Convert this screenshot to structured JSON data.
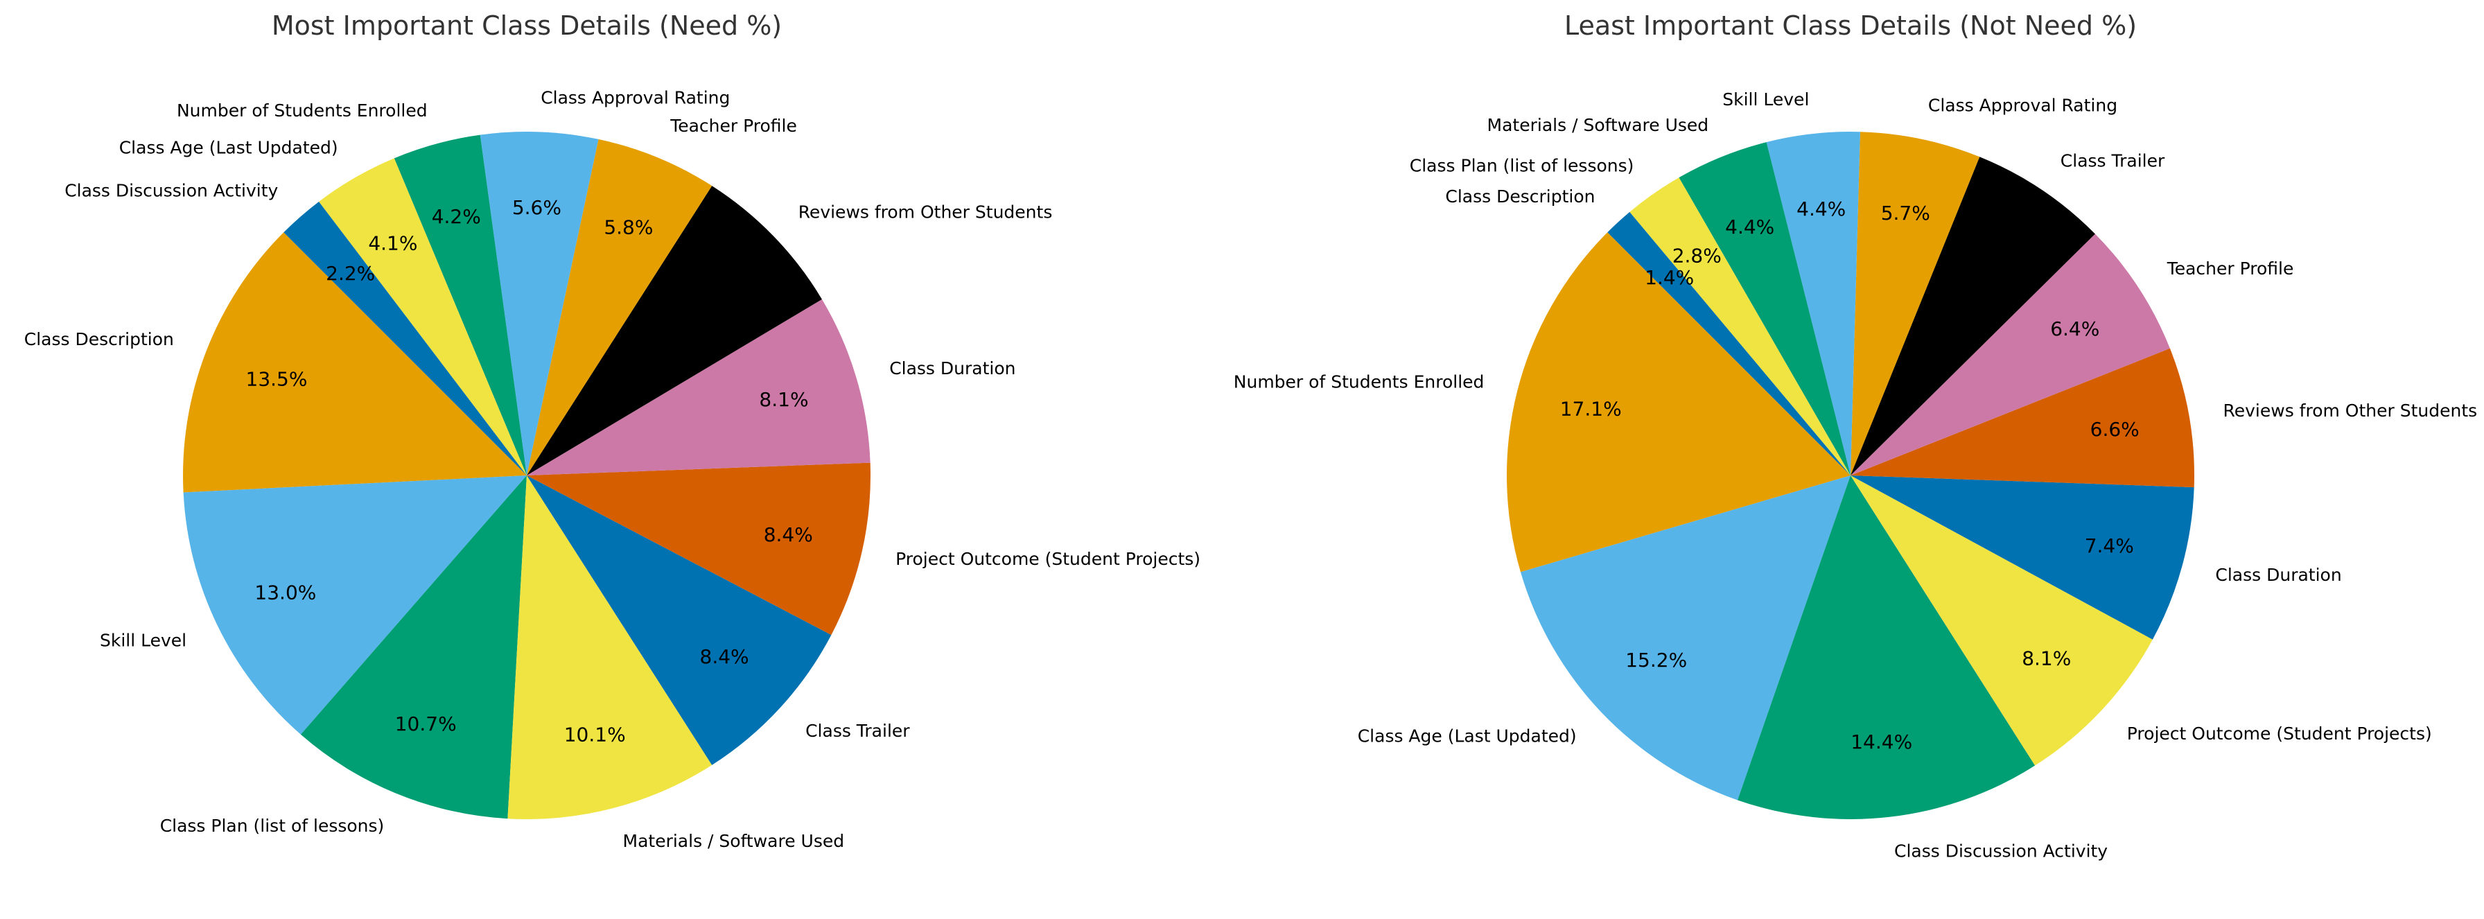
{
  "chart_data": [
    {
      "type": "pie",
      "title": "Most Important Class Details (Need %)",
      "start_angle_deg": 135,
      "direction": "counterclockwise",
      "categories": [
        "Class Description",
        "Skill Level",
        "Class Plan (list of lessons)",
        "Materials / Software Used",
        "Class Trailer",
        "Project Outcome (Student Projects)",
        "Class Duration",
        "Reviews from Other Students",
        "Teacher Profile",
        "Class Approval Rating",
        "Number of Students Enrolled",
        "Class Age (Last Updated)",
        "Class Discussion Activity"
      ],
      "values": [
        13.5,
        13.0,
        10.7,
        10.1,
        8.4,
        8.4,
        8.1,
        7.5,
        5.8,
        5.6,
        4.2,
        4.1,
        2.2
      ],
      "value_labels": [
        "13.5%",
        "13.0%",
        "10.7%",
        "10.1%",
        "8.4%",
        "8.4%",
        "8.1%",
        "",
        "5.8%",
        "5.6%",
        "4.2%",
        "4.1%",
        "2.2%"
      ],
      "colors": [
        "#E69F00",
        "#56B4E9",
        "#009E73",
        "#F0E442",
        "#0072B2",
        "#D55E00",
        "#CC79A7",
        "#000000",
        "#E69F00",
        "#56B4E9",
        "#009E73",
        "#F0E442",
        "#0072B2"
      ]
    },
    {
      "type": "pie",
      "title": "Least Important Class Details (Not Need %)",
      "start_angle_deg": 135,
      "direction": "counterclockwise",
      "categories": [
        "Number of Students Enrolled",
        "Class Age (Last Updated)",
        "Class Discussion Activity",
        "Project Outcome (Student Projects)",
        "Class Duration",
        "Reviews from Other Students",
        "Teacher Profile",
        "Class Trailer",
        "Class Approval Rating",
        "Skill Level",
        "Materials / Software Used",
        "Class Plan (list of lessons)",
        "Class Description"
      ],
      "values": [
        17.1,
        15.2,
        14.4,
        8.1,
        7.4,
        6.6,
        6.4,
        6.5,
        5.7,
        4.4,
        4.4,
        2.8,
        1.4
      ],
      "value_labels": [
        "17.1%",
        "15.2%",
        "14.4%",
        "8.1%",
        "7.4%",
        "6.6%",
        "6.4%",
        "",
        "5.7%",
        "4.4%",
        "4.4%",
        "2.8%",
        "1.4%"
      ],
      "colors": [
        "#E69F00",
        "#56B4E9",
        "#009E73",
        "#F0E442",
        "#0072B2",
        "#D55E00",
        "#CC79A7",
        "#000000",
        "#E69F00",
        "#56B4E9",
        "#009E73",
        "#F0E442",
        "#0072B2"
      ]
    }
  ]
}
